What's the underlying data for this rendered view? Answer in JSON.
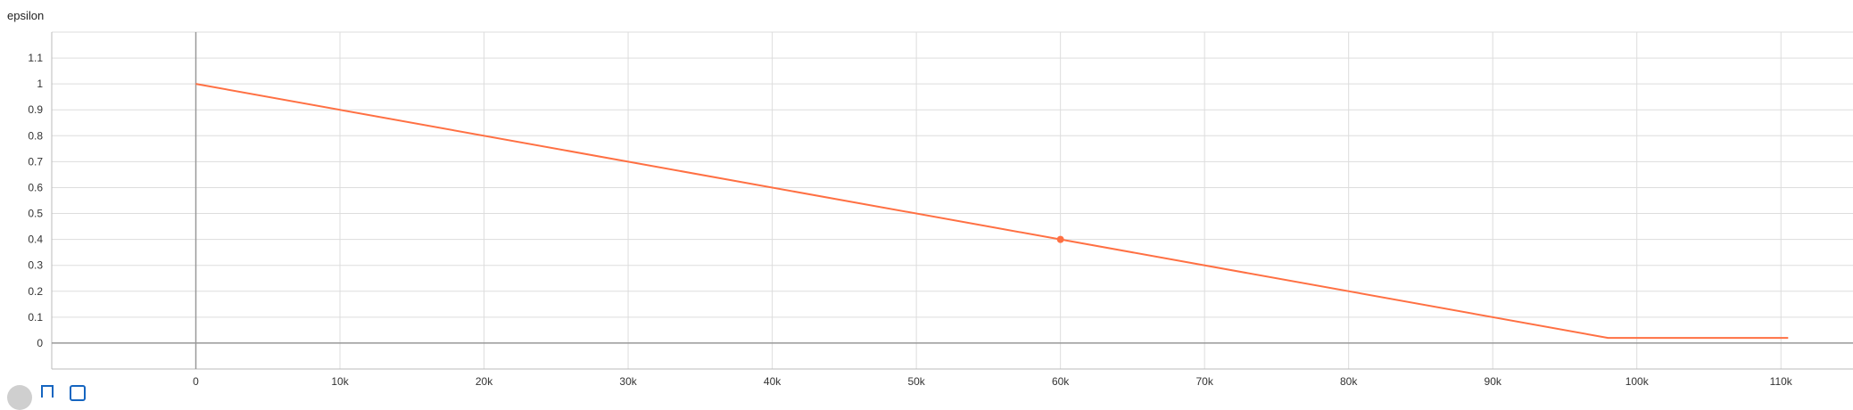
{
  "card": {
    "title": "epsilon"
  },
  "chart_data": {
    "type": "line",
    "title": "epsilon",
    "xlabel": "",
    "ylabel": "",
    "xlim": [
      -10000,
      115000
    ],
    "ylim": [
      -0.1,
      1.2
    ],
    "x_ticks": [
      0,
      10000,
      20000,
      30000,
      40000,
      50000,
      60000,
      70000,
      80000,
      90000,
      100000,
      110000
    ],
    "x_tick_labels": [
      "0",
      "10k",
      "20k",
      "30k",
      "40k",
      "50k",
      "60k",
      "70k",
      "80k",
      "90k",
      "100k",
      "110k"
    ],
    "y_ticks": [
      0,
      0.1,
      0.2,
      0.3,
      0.4,
      0.5,
      0.6,
      0.7,
      0.8,
      0.9,
      1,
      1.1
    ],
    "y_tick_labels": [
      "0",
      "0.1",
      "0.2",
      "0.3",
      "0.4",
      "0.5",
      "0.6",
      "0.7",
      "0.8",
      "0.9",
      "1",
      "1.1"
    ],
    "grid": true,
    "series": [
      {
        "color": "#ff7043",
        "x": [
          0,
          98000,
          110500
        ],
        "y": [
          1.0,
          0.02,
          0.02
        ]
      }
    ],
    "highlight_point": {
      "x": 60000,
      "y": 0.4,
      "color": "#ff7043"
    }
  },
  "toolbar": {
    "buttons": [
      {
        "icon": "expand-icon"
      },
      {
        "icon": "data-table-icon"
      },
      {
        "icon": "fit-domain-icon"
      }
    ]
  }
}
